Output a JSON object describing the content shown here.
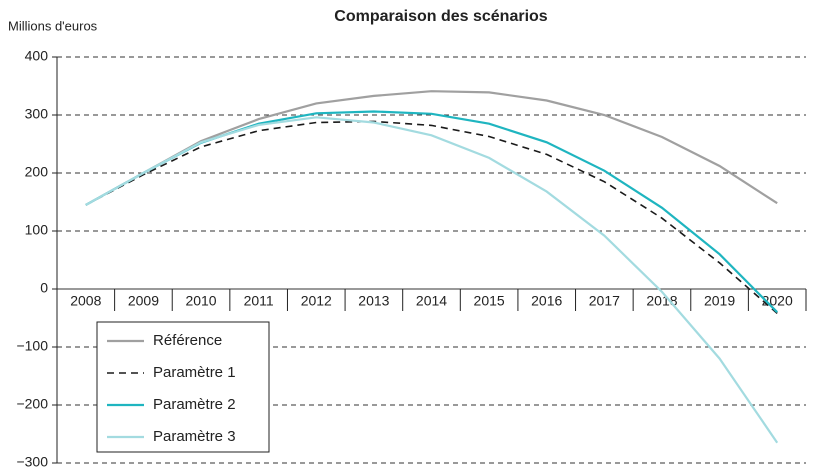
{
  "chart_data": {
    "type": "line",
    "title": "Comparaison des scénarios",
    "y_label": "Millions d'euros",
    "categories": [
      "2008",
      "2009",
      "2010",
      "2011",
      "2012",
      "2013",
      "2014",
      "2015",
      "2016",
      "2017",
      "2018",
      "2019",
      "2020"
    ],
    "series": [
      {
        "name": "Référence",
        "color": "#a0a0a0",
        "dash": false,
        "values": [
          145,
          200,
          255,
          293,
          320,
          333,
          341,
          339,
          325,
          300,
          262,
          212,
          148
        ]
      },
      {
        "name": "Paramètre 1",
        "color": "#1a1a1a",
        "dash": true,
        "values": [
          145,
          197,
          245,
          273,
          287,
          289,
          282,
          263,
          232,
          185,
          122,
          45,
          -42
        ]
      },
      {
        "name": "Paramètre 2",
        "color": "#1fb5c0",
        "dash": false,
        "values": [
          145,
          200,
          252,
          285,
          303,
          306,
          302,
          285,
          253,
          204,
          140,
          60,
          -40
        ]
      },
      {
        "name": "Paramètre 3",
        "color": "#a3dbe0",
        "dash": false,
        "values": [
          145,
          200,
          253,
          283,
          296,
          287,
          265,
          226,
          168,
          92,
          -5,
          -120,
          -265
        ]
      }
    ],
    "ylim": [
      -300,
      400
    ],
    "yticks": [
      {
        "value": -300,
        "label": "−300"
      },
      {
        "value": -200,
        "label": "−200"
      },
      {
        "value": -100,
        "label": "−100"
      },
      0,
      100,
      200,
      300,
      400
    ],
    "grid": true,
    "legend": "lower left"
  }
}
